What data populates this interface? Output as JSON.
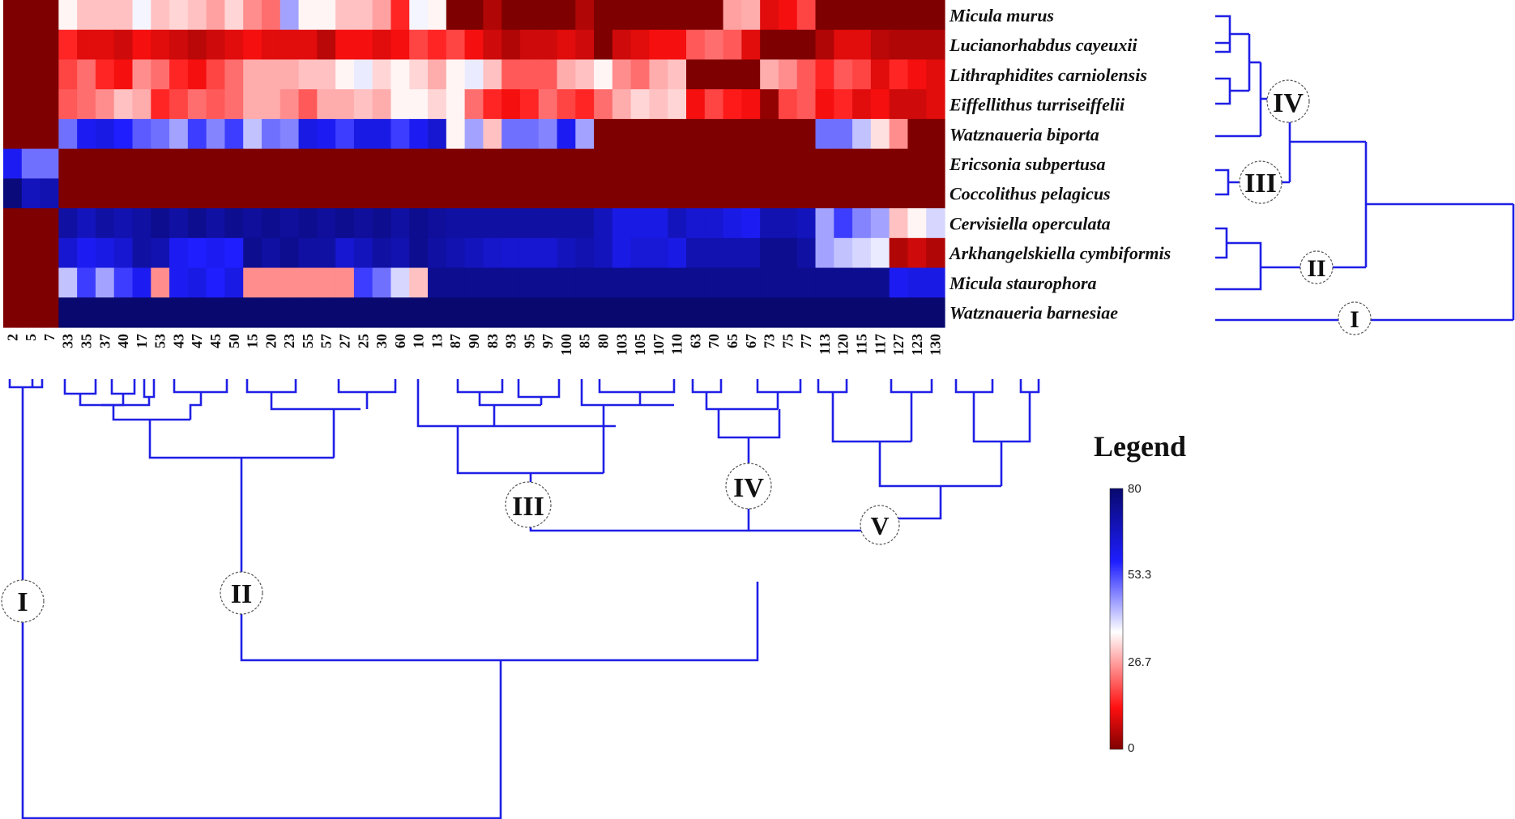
{
  "chart_data": {
    "type": "heatmap",
    "title": "",
    "xlabel": "",
    "ylabel": "",
    "rows": [
      "Micula murus",
      "Lucianorhabdus cayeuxii",
      "Lithraphidites carniolensis",
      "Eiffellithus turriseiffelii",
      "Watznaueria biporta",
      "Ericsonia subpertusa",
      "Coccolithus pelagicus",
      "Cervisiella operculata",
      "Arkhangelskiella cymbiformis",
      "Micula staurophora",
      "Watznaueria barnesiae"
    ],
    "columns": [
      "2",
      "5",
      "7",
      "33",
      "35",
      "37",
      "40",
      "17",
      "53",
      "43",
      "47",
      "45",
      "50",
      "15",
      "20",
      "23",
      "55",
      "57",
      "27",
      "25",
      "30",
      "60",
      "10",
      "13",
      "87",
      "90",
      "83",
      "93",
      "95",
      "97",
      "100",
      "85",
      "80",
      "103",
      "105",
      "107",
      "110",
      "63",
      "70",
      "65",
      "67",
      "73",
      "75",
      "77",
      "113",
      "120",
      "115",
      "117",
      "127",
      "123",
      "130"
    ],
    "values": [
      [
        0,
        0,
        0,
        35,
        30,
        30,
        30,
        37,
        30,
        32,
        30,
        27,
        32,
        25,
        22,
        45,
        35,
        35,
        30,
        30,
        27,
        15,
        37,
        35,
        0,
        0,
        5,
        0,
        0,
        0,
        0,
        5,
        0,
        0,
        0,
        0,
        0,
        0,
        0,
        27,
        28,
        10,
        12,
        18,
        0,
        0,
        0,
        0,
        0,
        0,
        0
      ],
      [
        0,
        0,
        0,
        15,
        10,
        10,
        8,
        12,
        10,
        8,
        6,
        8,
        10,
        12,
        10,
        10,
        10,
        6,
        12,
        12,
        10,
        12,
        18,
        15,
        18,
        12,
        8,
        5,
        8,
        8,
        10,
        8,
        0,
        8,
        10,
        12,
        12,
        20,
        22,
        20,
        10,
        0,
        0,
        0,
        5,
        10,
        10,
        6,
        5,
        5,
        5
      ],
      [
        0,
        0,
        0,
        18,
        22,
        15,
        12,
        25,
        22,
        15,
        12,
        18,
        22,
        28,
        28,
        28,
        30,
        30,
        35,
        38,
        32,
        35,
        32,
        28,
        35,
        38,
        30,
        20,
        20,
        20,
        28,
        30,
        35,
        25,
        22,
        28,
        30,
        0,
        0,
        0,
        0,
        28,
        25,
        20,
        15,
        20,
        18,
        10,
        15,
        12,
        10
      ],
      [
        0,
        0,
        0,
        20,
        22,
        25,
        30,
        28,
        15,
        18,
        22,
        20,
        22,
        28,
        28,
        25,
        20,
        28,
        28,
        30,
        28,
        35,
        35,
        32,
        35,
        22,
        15,
        12,
        15,
        22,
        18,
        15,
        22,
        28,
        32,
        30,
        32,
        12,
        18,
        14,
        12,
        2,
        18,
        20,
        12,
        15,
        10,
        12,
        8,
        8,
        10
      ],
      [
        0,
        0,
        0,
        50,
        60,
        62,
        58,
        52,
        50,
        45,
        55,
        48,
        55,
        42,
        50,
        48,
        62,
        60,
        55,
        62,
        62,
        55,
        60,
        65,
        35,
        45,
        30,
        50,
        50,
        48,
        60,
        45,
        0,
        0,
        0,
        0,
        0,
        0,
        0,
        0,
        0,
        0,
        0,
        0,
        50,
        50,
        42,
        33,
        25,
        0,
        0
      ],
      [
        60,
        50,
        50,
        0,
        0,
        0,
        0,
        0,
        0,
        0,
        0,
        0,
        0,
        0,
        0,
        0,
        0,
        0,
        0,
        0,
        0,
        0,
        0,
        0,
        0,
        0,
        0,
        0,
        0,
        0,
        0,
        0,
        0,
        0,
        0,
        0,
        0,
        0,
        0,
        0,
        0,
        0,
        0,
        0,
        0,
        0,
        0,
        0,
        0,
        0,
        0
      ],
      [
        78,
        68,
        70,
        0,
        0,
        0,
        0,
        0,
        0,
        0,
        0,
        0,
        0,
        0,
        0,
        0,
        0,
        0,
        0,
        0,
        0,
        0,
        0,
        0,
        0,
        0,
        0,
        0,
        0,
        0,
        0,
        0,
        0,
        0,
        0,
        0,
        0,
        0,
        0,
        0,
        0,
        0,
        0,
        0,
        0,
        0,
        0,
        0,
        0,
        0,
        0
      ],
      [
        0,
        0,
        0,
        72,
        68,
        72,
        70,
        72,
        75,
        72,
        75,
        72,
        75,
        73,
        75,
        73,
        75,
        73,
        75,
        73,
        75,
        72,
        75,
        73,
        72,
        72,
        72,
        72,
        72,
        72,
        72,
        72,
        68,
        62,
        62,
        62,
        68,
        65,
        65,
        62,
        60,
        70,
        70,
        68,
        45,
        55,
        48,
        45,
        30,
        35,
        40
      ],
      [
        0,
        0,
        0,
        65,
        60,
        62,
        65,
        72,
        70,
        60,
        58,
        60,
        58,
        75,
        72,
        75,
        72,
        72,
        65,
        68,
        72,
        70,
        75,
        72,
        70,
        68,
        66,
        65,
        65,
        65,
        68,
        70,
        68,
        62,
        64,
        64,
        62,
        70,
        70,
        70,
        70,
        75,
        75,
        72,
        45,
        42,
        40,
        38,
        5,
        8,
        5
      ],
      [
        0,
        0,
        0,
        42,
        55,
        45,
        55,
        60,
        25,
        60,
        62,
        58,
        62,
        25,
        25,
        25,
        25,
        25,
        25,
        55,
        50,
        40,
        30,
        75,
        75,
        75,
        75,
        75,
        75,
        75,
        75,
        75,
        75,
        75,
        75,
        75,
        75,
        75,
        75,
        75,
        75,
        75,
        75,
        75,
        75,
        75,
        75,
        75,
        60,
        62,
        62
      ],
      [
        0,
        0,
        0,
        80,
        80,
        80,
        80,
        80,
        80,
        80,
        80,
        80,
        80,
        80,
        80,
        80,
        80,
        80,
        80,
        80,
        80,
        80,
        80,
        80,
        80,
        80,
        80,
        80,
        80,
        80,
        80,
        80,
        80,
        80,
        80,
        80,
        80,
        80,
        80,
        80,
        80,
        80,
        80,
        80,
        80,
        80,
        80,
        80,
        80,
        80,
        80
      ]
    ],
    "color_scale": {
      "min": 0,
      "max": 80,
      "stops": [
        {
          "v": 0,
          "c": "#7f0000"
        },
        {
          "v": 13,
          "c": "#ff1010"
        },
        {
          "v": 36,
          "c": "#ffffff"
        },
        {
          "v": 58,
          "c": "#1e1eff"
        },
        {
          "v": 80,
          "c": "#08086e"
        }
      ]
    },
    "legend": {
      "title": "Legend",
      "ticks": [
        "80",
        "53.3",
        "26.7",
        "0"
      ]
    },
    "row_clusters": [
      "IV",
      "III",
      "II",
      "I"
    ],
    "column_clusters": [
      "I",
      "II",
      "III",
      "IV",
      "V"
    ]
  }
}
